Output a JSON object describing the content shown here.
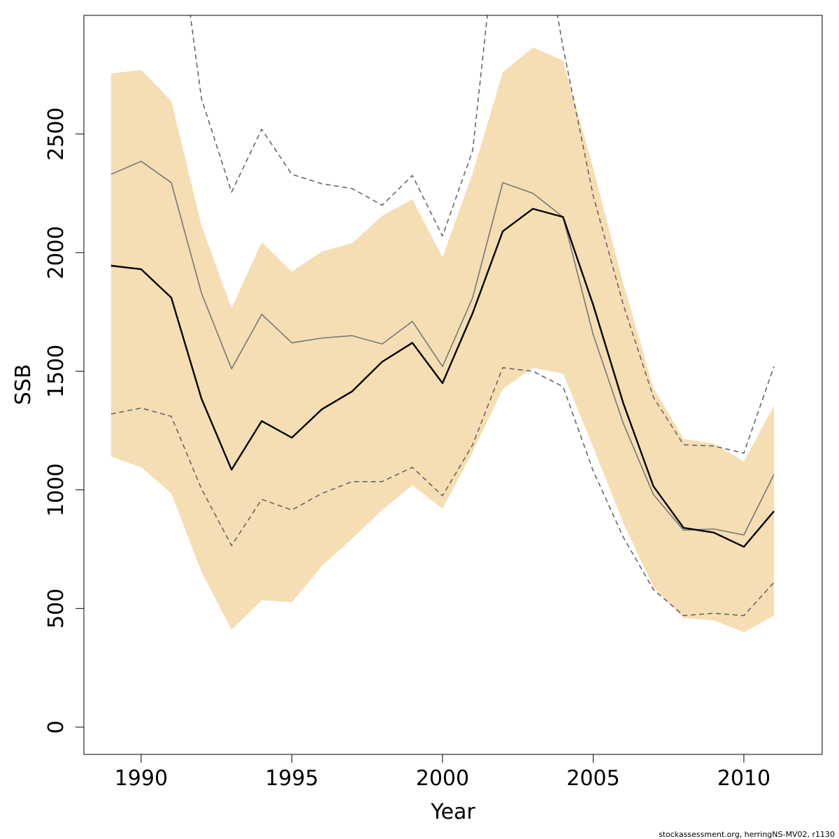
{
  "footer_text": "stockassessment.org, herringNS-MV02, r1130",
  "chart_data": {
    "type": "line",
    "xlabel": "Year",
    "ylabel": "SSB",
    "xlim": [
      1988.1,
      2012.6
    ],
    "ylim": [
      -115,
      3000
    ],
    "x_ticks": [
      1990,
      1995,
      2000,
      2005,
      2010
    ],
    "y_ticks": [
      0,
      500,
      1000,
      1500,
      2000,
      2500
    ],
    "grid": false,
    "legend": "none",
    "x": [
      1989,
      1990,
      1991,
      1992,
      1993,
      1994,
      1995,
      1996,
      1997,
      1998,
      1999,
      2000,
      2001,
      2002,
      2003,
      2004,
      2005,
      2006,
      2007,
      2008,
      2009,
      2010,
      2011
    ],
    "band": {
      "color": "#f5deb3",
      "upper": [
        2755,
        2770,
        2640,
        2115,
        1765,
        2045,
        1920,
        2005,
        2040,
        2155,
        2225,
        1980,
        2335,
        2760,
        2865,
        2810,
        2355,
        1870,
        1430,
        1215,
        1195,
        1120,
        1355
      ],
      "lower": [
        1140,
        1095,
        985,
        655,
        410,
        535,
        525,
        680,
        795,
        915,
        1020,
        920,
        1160,
        1425,
        1515,
        1490,
        1180,
        860,
        590,
        460,
        450,
        400,
        470
      ]
    },
    "series": [
      {
        "style": "dashed",
        "color": "#666666",
        "values": [
          null,
          null,
          null,
          2650,
          2255,
          2520,
          2330,
          2290,
          2270,
          2200,
          2325,
          2070,
          2430,
          null,
          null,
          2865,
          2240,
          1780,
          1390,
          1190,
          1185,
          1155,
          1520
        ]
      },
      {
        "style": "dashed",
        "color": "#666666",
        "values": [
          1320,
          1345,
          1310,
          1005,
          765,
          960,
          915,
          985,
          1035,
          1035,
          1095,
          975,
          1190,
          1515,
          1500,
          1435,
          1080,
          800,
          580,
          470,
          480,
          470,
          610
        ]
      },
      {
        "style": "solid",
        "color": "#777777",
        "values": [
          2330,
          2385,
          2295,
          1830,
          1510,
          1740,
          1620,
          1640,
          1650,
          1615,
          1710,
          1520,
          1810,
          2295,
          2250,
          2150,
          1655,
          1280,
          980,
          830,
          835,
          810,
          1065
        ]
      },
      {
        "style": "solid",
        "color": "#000000",
        "values": [
          1945,
          1930,
          1810,
          1385,
          1085,
          1290,
          1220,
          1340,
          1415,
          1540,
          1620,
          1450,
          1745,
          2090,
          2185,
          2150,
          1780,
          1365,
          1015,
          840,
          820,
          760,
          910
        ]
      }
    ]
  }
}
